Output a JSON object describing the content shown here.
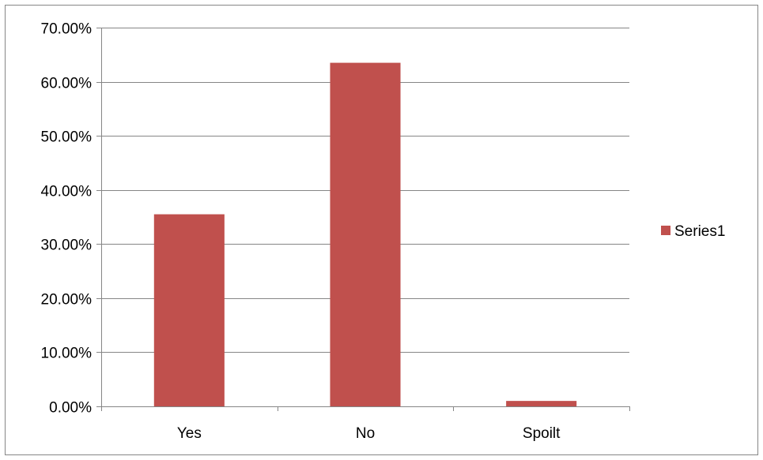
{
  "chart_data": {
    "type": "bar",
    "categories": [
      "Yes",
      "No",
      "Spoilt"
    ],
    "series": [
      {
        "name": "Series1",
        "values": [
          0.355,
          0.635,
          0.01
        ]
      }
    ],
    "ylim": [
      0,
      0.7
    ],
    "yticks": [
      0,
      0.1,
      0.2,
      0.3,
      0.4,
      0.5,
      0.6,
      0.7
    ],
    "ytick_labels": [
      "0.00%",
      "10.00%",
      "20.00%",
      "30.00%",
      "40.00%",
      "50.00%",
      "60.00%",
      "70.00%"
    ],
    "grid": true,
    "legend": "right",
    "colors": {
      "bar": "#c0504d",
      "grid": "#868686",
      "axis": "#868686",
      "frame": "#868686"
    }
  }
}
